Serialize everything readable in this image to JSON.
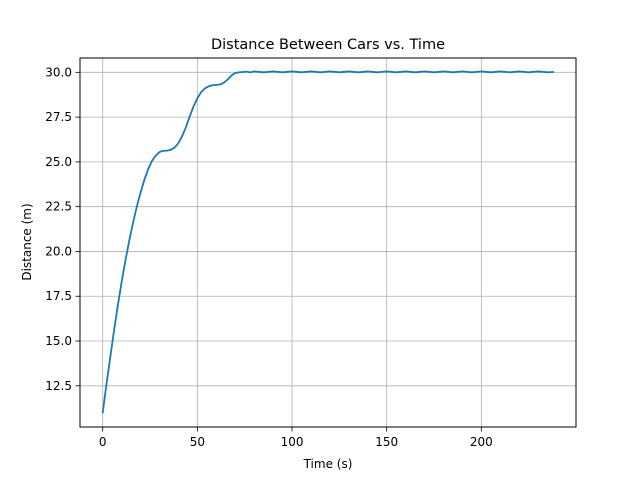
{
  "chart_data": {
    "type": "line",
    "title": "Distance Between Cars vs. Time",
    "xlabel": "Time (s)",
    "ylabel": "Distance (m)",
    "xlim": [
      -12,
      250
    ],
    "ylim": [
      10.2,
      30.8
    ],
    "x_ticks": [
      0,
      50,
      100,
      150,
      200
    ],
    "x_tick_labels": [
      "0",
      "50",
      "100",
      "150",
      "200"
    ],
    "y_ticks": [
      12.5,
      15.0,
      17.5,
      20.0,
      22.5,
      25.0,
      27.5,
      30.0
    ],
    "y_tick_labels": [
      "12.5",
      "15.0",
      "17.5",
      "20.0",
      "22.5",
      "25.0",
      "27.5",
      "30.0"
    ],
    "grid": true,
    "colors": {
      "series": "#1f77b4",
      "grid": "#b0b0b0",
      "axes": "#000000"
    },
    "series": [
      {
        "x": [
          0,
          2,
          4,
          6,
          8,
          10,
          12,
          14,
          16,
          18,
          20,
          22,
          24,
          26,
          28,
          30,
          32,
          34,
          36,
          38,
          40,
          42,
          44,
          46,
          48,
          50,
          52,
          54,
          56,
          58,
          60,
          62,
          64,
          66,
          68,
          70,
          72,
          74,
          76,
          78,
          80,
          85,
          90,
          95,
          100,
          105,
          110,
          115,
          120,
          125,
          130,
          135,
          140,
          145,
          150,
          155,
          160,
          165,
          170,
          175,
          180,
          185,
          190,
          195,
          200,
          205,
          210,
          215,
          220,
          225,
          230,
          235,
          238
        ],
        "values": [
          11.0,
          12.6,
          14.1,
          15.6,
          17.0,
          18.3,
          19.5,
          20.6,
          21.6,
          22.5,
          23.3,
          24.0,
          24.6,
          25.05,
          25.35,
          25.55,
          25.62,
          25.63,
          25.68,
          25.8,
          26.05,
          26.45,
          26.95,
          27.55,
          28.1,
          28.55,
          28.9,
          29.1,
          29.22,
          29.28,
          29.3,
          29.32,
          29.42,
          29.6,
          29.82,
          29.96,
          30.0,
          30.02,
          30.04,
          30.0,
          30.05,
          30.0,
          30.05,
          30.0,
          30.05,
          30.0,
          30.05,
          30.0,
          30.05,
          30.0,
          30.05,
          30.0,
          30.05,
          30.0,
          30.05,
          30.0,
          30.05,
          30.0,
          30.05,
          30.0,
          30.05,
          30.0,
          30.05,
          30.0,
          30.05,
          30.0,
          30.05,
          30.0,
          30.05,
          30.0,
          30.05,
          30.0,
          30.02
        ]
      }
    ]
  }
}
